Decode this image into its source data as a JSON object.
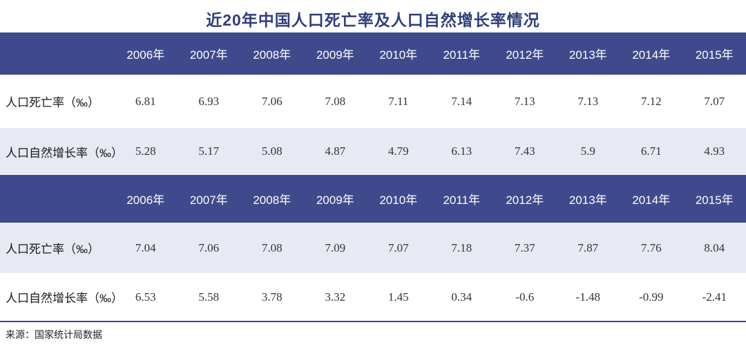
{
  "page": {
    "title": "近20年中国人口死亡率及人口自然增长率情况",
    "source_note": "来源：国家统计局数据"
  },
  "colors": {
    "title_text": "#2F3E7C",
    "header_bg": "#3E4A8C",
    "header_text": "#FFFFFF",
    "shaded_row_bg": "#E7EAF3",
    "value_text": "#333333",
    "rule": "#3E4A8C"
  },
  "chart_data": {
    "type": "table",
    "title": "近20年中国人口死亡率及人口自然增长率情况",
    "source": "来源：国家统计局数据",
    "tables": [
      {
        "header": [
          "2006年",
          "2007年",
          "2008年",
          "2009年",
          "2010年",
          "2011年",
          "2012年",
          "2013年",
          "2014年",
          "2015年"
        ],
        "rows": [
          {
            "label": "人口死亡率（‰）",
            "shaded": false,
            "values": [
              "6.81",
              "6.93",
              "7.06",
              "7.08",
              "7.11",
              "7.14",
              "7.13",
              "7.13",
              "7.12",
              "7.07"
            ]
          },
          {
            "label": "人口自然增长率（‰）",
            "shaded": true,
            "values": [
              "5.28",
              "5.17",
              "5.08",
              "4.87",
              "4.79",
              "6.13",
              "7.43",
              "5.9",
              "6.71",
              "4.93"
            ]
          }
        ]
      },
      {
        "header": [
          "2006年",
          "2007年",
          "2008年",
          "2009年",
          "2010年",
          "2011年",
          "2012年",
          "2013年",
          "2014年",
          "2015年"
        ],
        "rows": [
          {
            "label": "人口死亡率（‰）",
            "shaded": true,
            "values": [
              "7.04",
              "7.06",
              "7.08",
              "7.09",
              "7.07",
              "7.18",
              "7.37",
              "7.87",
              "7.76",
              "8.04"
            ]
          },
          {
            "label": "人口自然增长率（‰）",
            "shaded": false,
            "values": [
              "6.53",
              "5.58",
              "3.78",
              "3.32",
              "1.45",
              "0.34",
              "-0.6",
              "-1.48",
              "-0.99",
              "-2.41"
            ]
          }
        ]
      }
    ]
  }
}
